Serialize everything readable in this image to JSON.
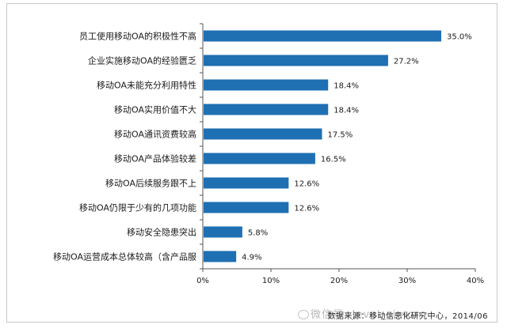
{
  "chart_data": {
    "type": "bar",
    "orientation": "horizontal",
    "categories": [
      "员工使用移动OA的积极性不高",
      "企业实施移动OA的经验匮乏",
      "移动OA未能充分利用特性",
      "移动OA实用价值不大",
      "移动OA通讯资费较高",
      "移动OA产品体验较差",
      "移动OA后续服务跟不上",
      "移动OA仍限于少有的几项功能",
      "移动安全隐患突出",
      "移动OA运营成本总体较高（含产品服"
    ],
    "values": [
      35.0,
      27.2,
      18.4,
      18.4,
      17.5,
      16.5,
      12.6,
      12.6,
      5.8,
      4.9
    ],
    "value_labels": [
      "35.0%",
      "27.2%",
      "18.4%",
      "18.4%",
      "17.5%",
      "16.5%",
      "12.6%",
      "12.6%",
      "5.8%",
      "4.9%"
    ],
    "xlim": [
      0,
      40
    ],
    "x_ticks": [
      "0%",
      "10%",
      "20%",
      "30%",
      "40%"
    ],
    "bar_color": "#1f6fb3",
    "grid": false,
    "legend": "none"
  },
  "source": "数据来源：移动信息化研究中心，2014/06",
  "watermark": "微信号: Jevel_simon",
  "colors": {
    "bar": "#1f6fb3",
    "axis": "#555555"
  }
}
